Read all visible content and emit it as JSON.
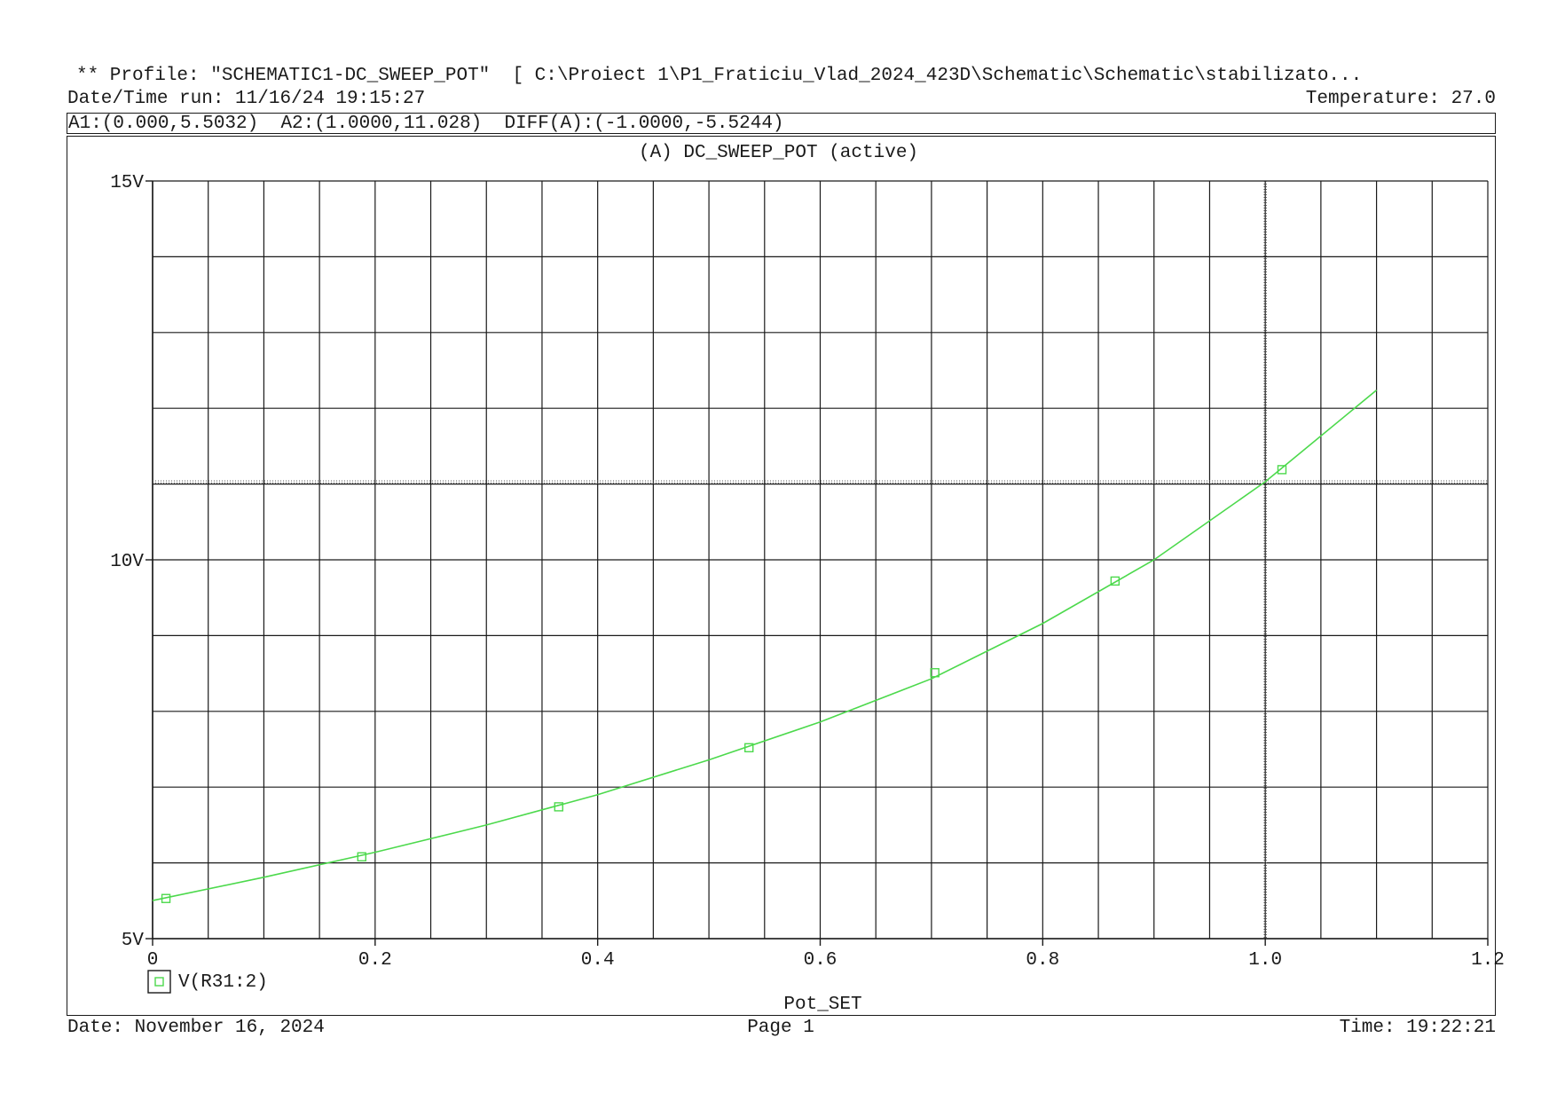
{
  "header": {
    "profile": "** Profile: \"SCHEMATIC1-DC_SWEEP_POT\"  [ C:\\Proiect 1\\P1_Fraticiu_Vlad_2024_423D\\Schematic\\Schematic\\stabilizato...",
    "datetime": "Date/Time run: 11/16/24 19:15:27",
    "temperature": "Temperature: 27.0"
  },
  "cursor_info": "A1:(0.000,5.5032)  A2:(1.0000,11.028)  DIFF(A):(-1.0000,-5.5244)",
  "footer": {
    "date": "Date: November 16, 2024",
    "page": "Page 1",
    "time": "Time: 19:22:21"
  },
  "colors": {
    "trace": "#4cd94c",
    "grid": "#1a1a1a",
    "text": "#1a1a1a"
  },
  "chart_data": {
    "type": "line",
    "title": "(A) DC_SWEEP_POT (active)",
    "xlabel": "Pot_SET",
    "ylabel": "",
    "xlim": [
      0,
      1.2
    ],
    "ylim": [
      5,
      15
    ],
    "x_ticks": [
      0,
      0.2,
      0.4,
      0.6,
      0.8,
      1.0,
      1.2
    ],
    "x_tick_labels": [
      "0",
      "0.2",
      "0.4",
      "0.6",
      "0.8",
      "1.0",
      "1.2"
    ],
    "x_minor_step": 0.05,
    "y_ticks": [
      5,
      10,
      15
    ],
    "y_tick_labels": [
      "5V",
      "10V",
      "15V"
    ],
    "y_minor_step": 1,
    "grid": true,
    "legend_position": "bottom-left",
    "cursors": [
      {
        "name": "A1",
        "x": 0.0,
        "y": 5.5032
      },
      {
        "name": "A2",
        "x": 1.0,
        "y": 11.028
      }
    ],
    "series": [
      {
        "name": "V(R31:2)",
        "marker": "square",
        "x": [
          0,
          0.1,
          0.2,
          0.3,
          0.4,
          0.5,
          0.6,
          0.7,
          0.8,
          0.9,
          1.0,
          1.1
        ],
        "y": [
          5.503,
          5.81,
          6.14,
          6.5,
          6.9,
          7.36,
          7.86,
          8.43,
          9.16,
          10.0,
          11.03,
          12.24
        ],
        "marker_x": [
          0.012,
          0.188,
          0.365,
          0.536,
          0.703,
          0.865,
          1.015
        ],
        "marker_y": [
          5.53,
          6.08,
          6.74,
          7.52,
          8.51,
          9.72,
          11.19
        ]
      }
    ]
  }
}
